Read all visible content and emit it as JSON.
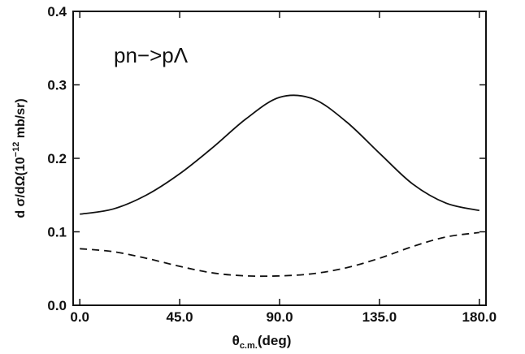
{
  "chart_data": {
    "type": "line",
    "title": "",
    "xlabel_main": "θ",
    "xlabel_sub": "c.m.",
    "xlabel_unit": "(deg)",
    "ylabel_main": "d σ/dΩ(10",
    "ylabel_exp": "−12",
    "ylabel_unit": " mb/sr)",
    "annotation": "pn−>pΛ",
    "xlim": [
      -3,
      183
    ],
    "ylim": [
      0.0,
      0.4
    ],
    "x_ticks": [
      0,
      45,
      90,
      135,
      180
    ],
    "x_tick_labels": [
      "0.0",
      "45.0",
      "90.0",
      "135.0",
      "180.0"
    ],
    "y_ticks": [
      0.0,
      0.1,
      0.2,
      0.3,
      0.4
    ],
    "y_tick_labels": [
      "0.0",
      "0.1",
      "0.2",
      "0.3",
      "0.4"
    ],
    "grid": false,
    "legend": "none",
    "series": [
      {
        "style": "solid",
        "x": [
          0,
          15,
          30,
          45,
          60,
          75,
          90,
          105,
          120,
          135,
          150,
          165,
          180
        ],
        "y": [
          0.124,
          0.131,
          0.15,
          0.179,
          0.215,
          0.254,
          0.283,
          0.281,
          0.25,
          0.207,
          0.165,
          0.139,
          0.129
        ]
      },
      {
        "style": "dashed",
        "x": [
          0,
          15,
          30,
          45,
          60,
          75,
          90,
          105,
          120,
          135,
          150,
          165,
          180
        ],
        "y": [
          0.077,
          0.073,
          0.064,
          0.053,
          0.044,
          0.04,
          0.04,
          0.043,
          0.051,
          0.064,
          0.08,
          0.093,
          0.099
        ]
      }
    ]
  }
}
